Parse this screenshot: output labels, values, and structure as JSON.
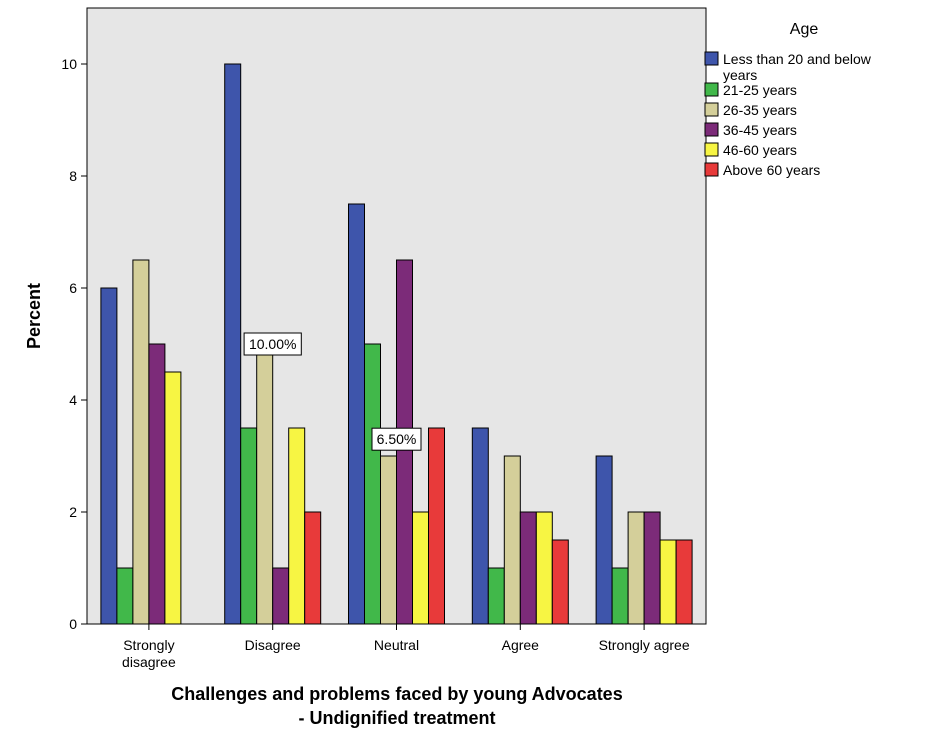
{
  "chart_data": {
    "type": "bar",
    "title": "",
    "xlabel_lines": [
      "Challenges and problems faced by young Advocates",
      "- Undignified treatment"
    ],
    "ylabel": "Percent",
    "ylim": [
      0,
      11
    ],
    "yticks": [
      0,
      2,
      4,
      6,
      8,
      10
    ],
    "grid": false,
    "categories": [
      "Strongly disagree",
      "Disagree",
      "Neutral",
      "Agree",
      "Strongly agree"
    ],
    "category_label_lines": [
      [
        "Strongly",
        "disagree"
      ],
      [
        "Disagree"
      ],
      [
        "Neutral"
      ],
      [
        "Agree"
      ],
      [
        "Strongly agree"
      ]
    ],
    "legend": {
      "title": "Age",
      "placement": "right",
      "entries": [
        {
          "label_lines": [
            "Less than 20 and below",
            "years"
          ],
          "color": "#3e55ab"
        },
        {
          "label_lines": [
            "21-25 years"
          ],
          "color": "#41b84a"
        },
        {
          "label_lines": [
            "26-35 years"
          ],
          "color": "#d4cf9a"
        },
        {
          "label_lines": [
            "36-45 years"
          ],
          "color": "#7c2b79"
        },
        {
          "label_lines": [
            "46-60 years"
          ],
          "color": "#f7f543"
        },
        {
          "label_lines": [
            "Above 60 years"
          ],
          "color": "#e83a3a"
        }
      ]
    },
    "series": [
      {
        "name": "Less than 20 and below years",
        "color": "#3e55ab",
        "values": [
          6,
          10,
          7.5,
          3.5,
          3
        ]
      },
      {
        "name": "21-25 years",
        "color": "#41b84a",
        "values": [
          1,
          3.5,
          5,
          1,
          1
        ]
      },
      {
        "name": "26-35 years",
        "color": "#d4cf9a",
        "values": [
          6.5,
          5,
          3,
          3,
          2
        ]
      },
      {
        "name": "36-45 years",
        "color": "#7c2b79",
        "values": [
          5,
          1,
          6.5,
          2,
          2
        ]
      },
      {
        "name": "46-60 years",
        "color": "#f7f543",
        "values": [
          4.5,
          3.5,
          2,
          2,
          1.5
        ]
      },
      {
        "name": "Above 60 years",
        "color": "#e83a3a",
        "values": [
          null,
          2,
          3.5,
          1.5,
          1.5
        ]
      }
    ],
    "annotations": [
      {
        "text": "10.00%",
        "category_index": 1,
        "y": 5
      },
      {
        "text": "6.50%",
        "category_index": 2,
        "y": 3.3
      }
    ],
    "plot_background": "#e6e6e6"
  }
}
